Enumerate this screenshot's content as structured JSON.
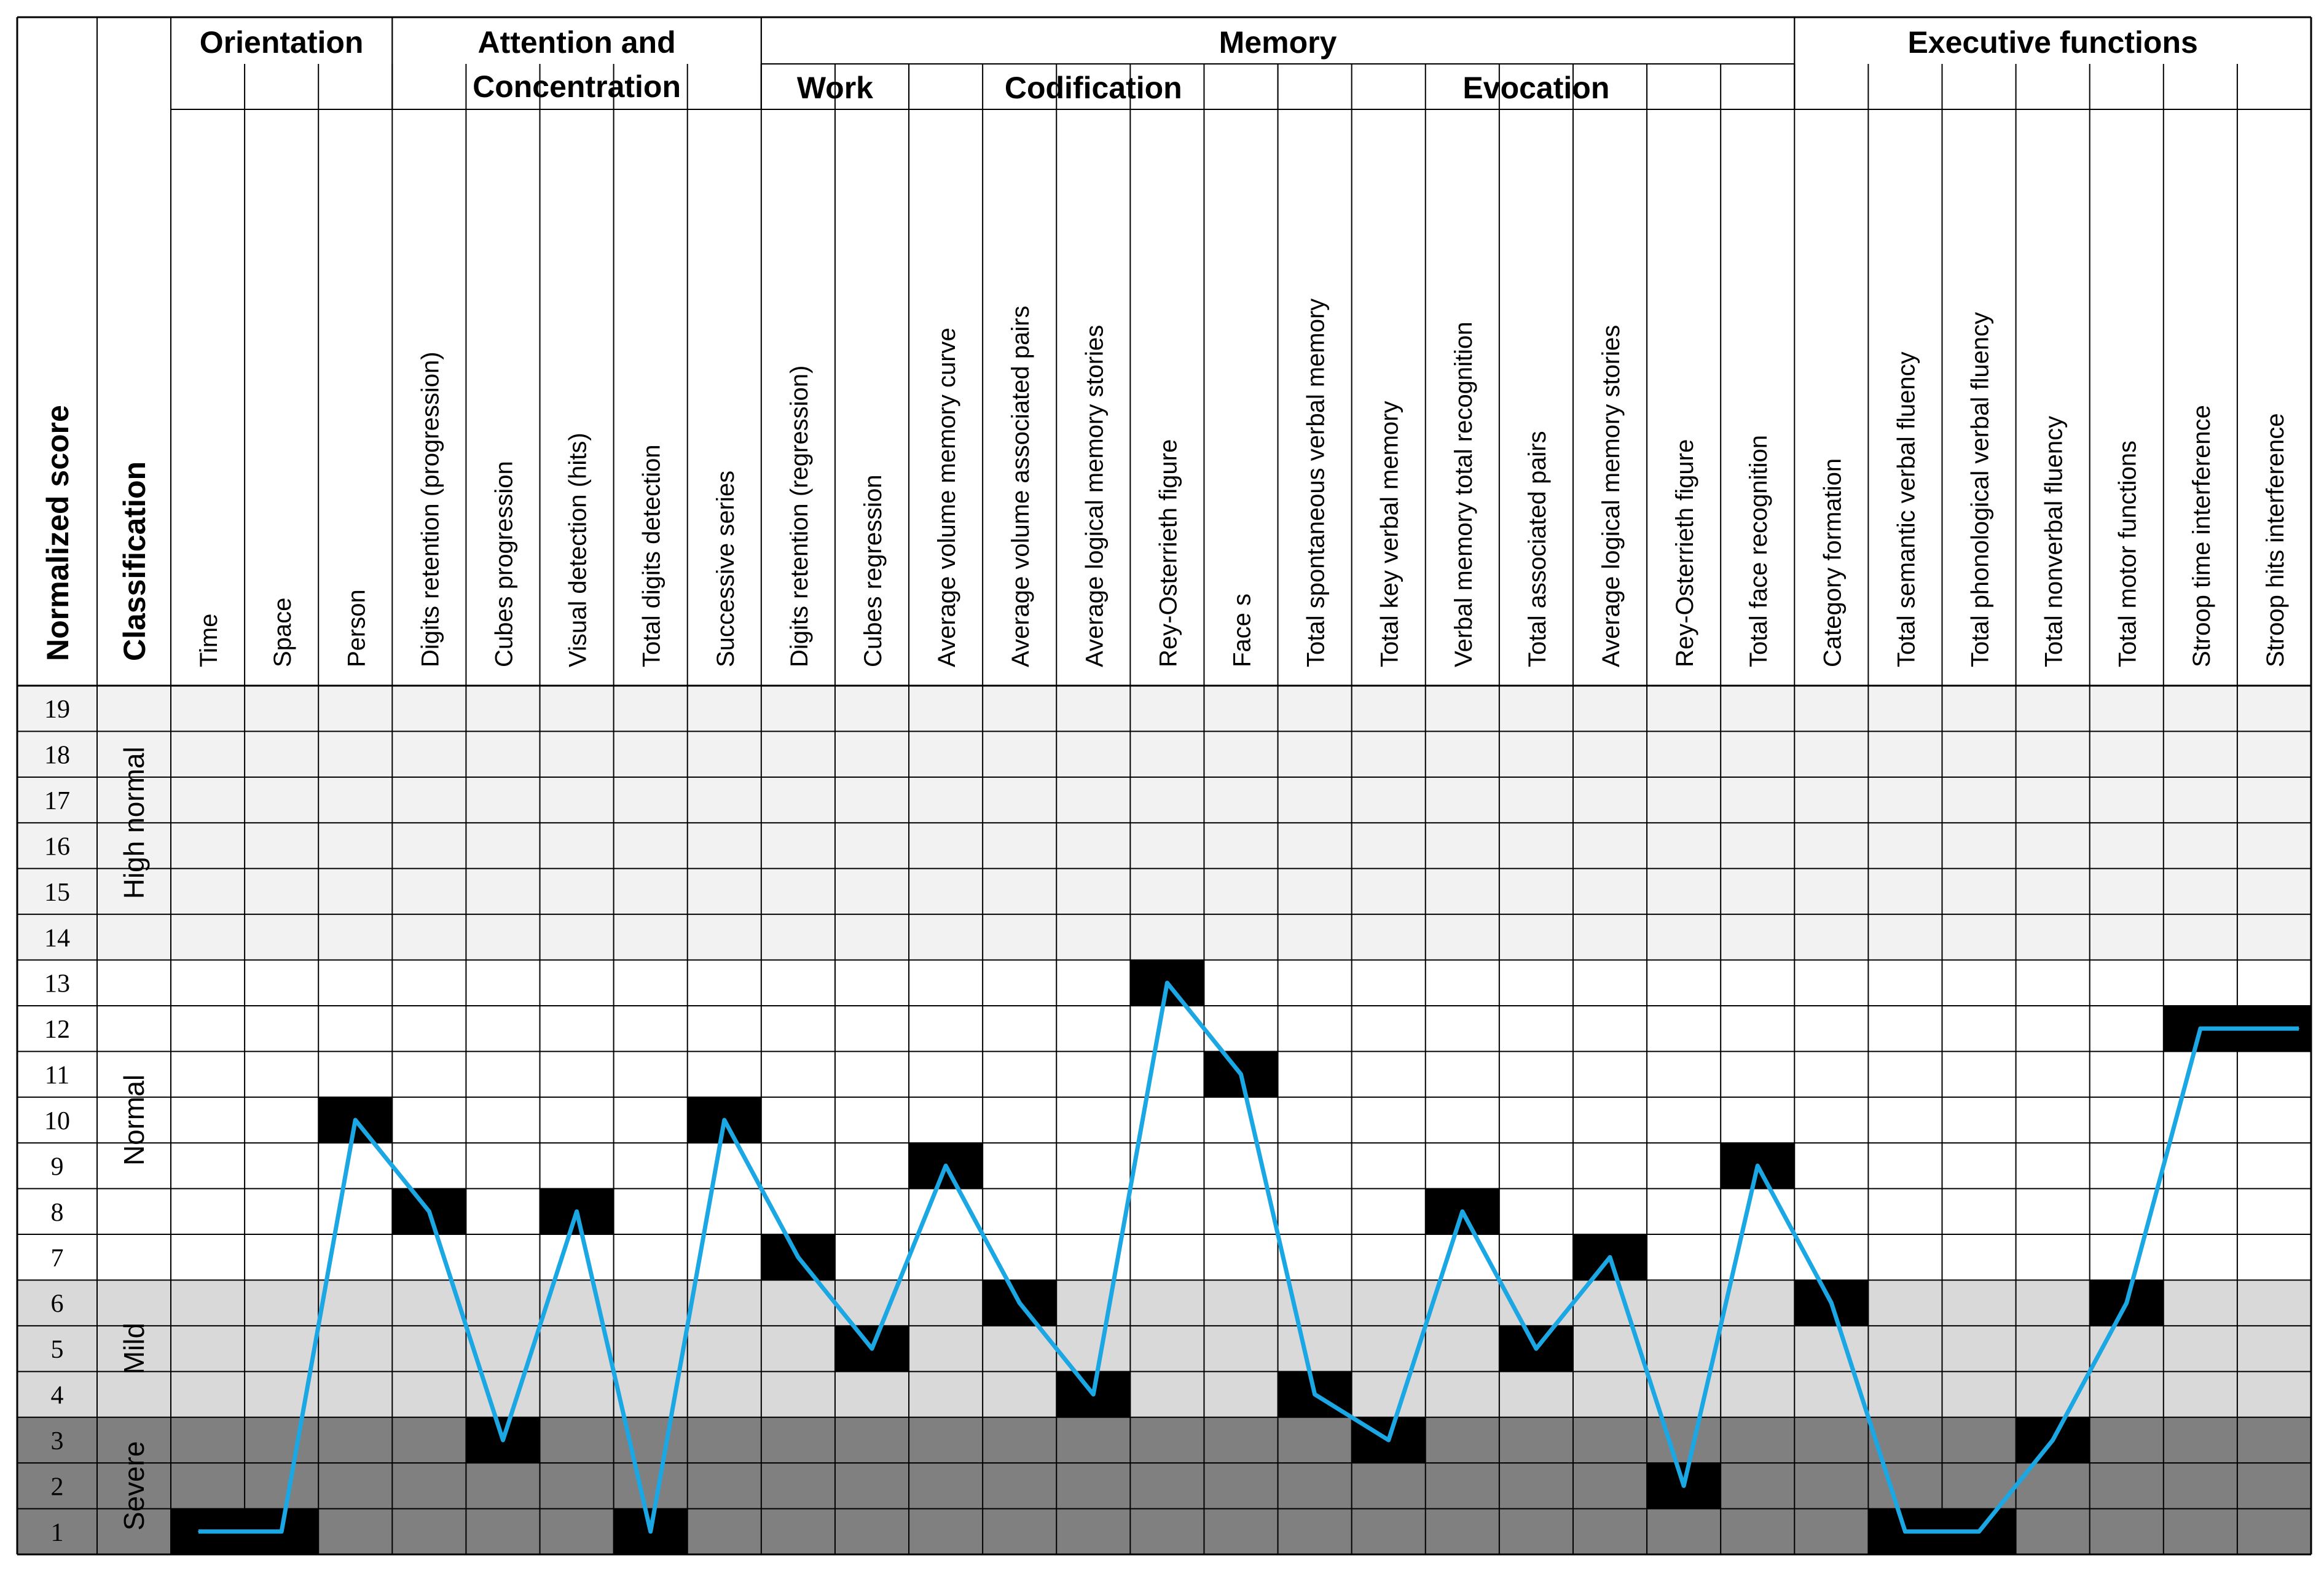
{
  "header": {
    "normalized_score": "Normalized score",
    "classification": "Classification",
    "groups": [
      {
        "label_lines": [
          "Orientation"
        ]
      },
      {
        "label_lines": [
          "Attention and",
          "Concentration"
        ]
      },
      {
        "label_lines": [
          "Memory"
        ]
      },
      {
        "label_lines": [
          "Executive functions"
        ]
      }
    ],
    "subgroups": [
      {
        "label": "Work"
      },
      {
        "label": "Codification"
      },
      {
        "label": "Evocation"
      }
    ]
  },
  "chart_data": {
    "type": "line",
    "ylim": [
      1,
      19
    ],
    "y_ticks": [
      19,
      18,
      17,
      16,
      15,
      14,
      13,
      12,
      11,
      10,
      9,
      8,
      7,
      6,
      5,
      4,
      3,
      2,
      1
    ],
    "bands": [
      {
        "label": "High normal",
        "from": 14,
        "to": 19,
        "color": "#f2f2f2"
      },
      {
        "label": "Normal",
        "from": 7,
        "to": 13,
        "color": "#ffffff"
      },
      {
        "label": "Mild",
        "from": 4,
        "to": 6,
        "color": "#d9d9d9"
      },
      {
        "label": "Severe",
        "from": 1,
        "to": 3,
        "color": "#808080"
      }
    ],
    "categories": [
      "Time",
      "Space",
      "Person",
      "Digits retention (progression)",
      "Cubes progression",
      "Visual detection (hits)",
      "Total digits detection",
      "Successive series",
      "Digits retention (regression)",
      "Cubes regression",
      "Average volume memory curve",
      "Average volume associated pairs",
      "Average logical memory stories",
      "Rey-Osterrieth figure",
      "Face s",
      "Total spontaneous verbal memory",
      "Total key verbal memory",
      "Verbal memory total recognition",
      "Total associated pairs",
      "Average logical memory stories",
      "Rey-Osterrieth figure",
      "Total face recognition",
      "Category formation",
      "Total semantic verbal fluency",
      "Total phonological verbal fluency",
      "Total nonverbal fluency",
      "Total motor functions",
      "Stroop time interference",
      "Stroop hits interference"
    ],
    "values": [
      1,
      1,
      10,
      8,
      3,
      8,
      1,
      10,
      7,
      5,
      9,
      6,
      4,
      13,
      11,
      4,
      3,
      8,
      5,
      7,
      2,
      9,
      6,
      1,
      1,
      3,
      6,
      12,
      12
    ],
    "line_color": "#1aa7e3",
    "marker_color": "#000000"
  }
}
